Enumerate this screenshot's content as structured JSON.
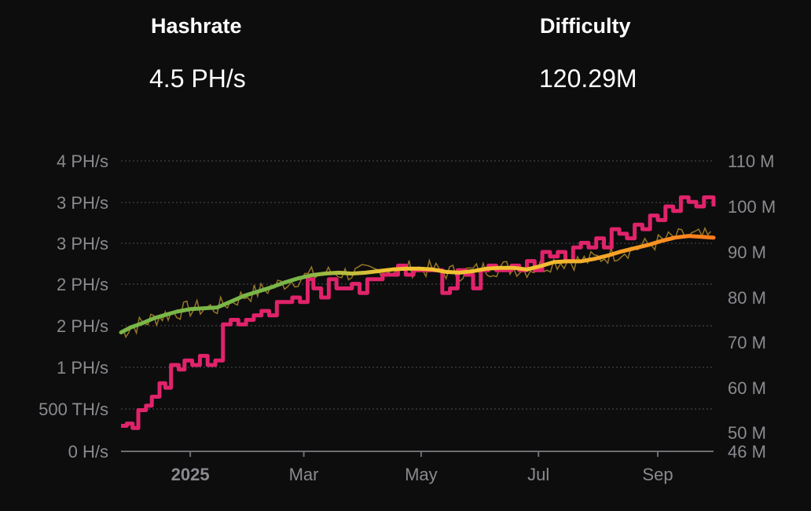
{
  "stats": {
    "hashrate": {
      "label": "Hashrate",
      "value": "4.5 PH/s"
    },
    "difficulty": {
      "label": "Difficulty",
      "value": "120.29M"
    }
  },
  "chart_data": {
    "type": "line",
    "left_axis": {
      "labels": [
        "0 H/s",
        "500 TH/s",
        "1 PH/s",
        "2 PH/s",
        "2 PH/s",
        "3 PH/s",
        "3 PH/s",
        "4 PH/s"
      ],
      "values": [
        0,
        0.5,
        1.0,
        1.5,
        2.0,
        2.5,
        3.0,
        3.5
      ],
      "ylim": [
        0,
        3.5
      ],
      "unit": "PH/s"
    },
    "right_axis": {
      "labels": [
        "46 M",
        "50 M",
        "60 M",
        "70 M",
        "80 M",
        "90 M",
        "100 M",
        "110 M"
      ],
      "values": [
        46,
        50,
        60,
        70,
        80,
        90,
        100,
        110
      ],
      "ylim": [
        46,
        110
      ],
      "unit": "M"
    },
    "x_axis": {
      "labels": [
        {
          "text": "2025",
          "date": "2025-01-01",
          "bold": true
        },
        {
          "text": "Mar",
          "date": "2025-03-01",
          "bold": false
        },
        {
          "text": "May",
          "date": "2025-05-01",
          "bold": false
        },
        {
          "text": "Jul",
          "date": "2025-07-01",
          "bold": false
        },
        {
          "text": "Sep",
          "date": "2025-09-01",
          "bold": false
        }
      ],
      "xlim": [
        "2024-11-26",
        "2025-09-30"
      ]
    },
    "grid": true,
    "colors": {
      "difficulty": "#e0236b",
      "hashrate_avg_start": "#7ab648",
      "hashrate_avg_mid": "#f1c232",
      "hashrate_avg_end": "#ff7a1a",
      "hashrate_raw": "#b08a2a",
      "grid": "#3a3a3d",
      "axis": "#6e6e73"
    },
    "series": [
      {
        "axis": "right",
        "points": [
          [
            "2024-11-26",
            51.5
          ],
          [
            "2024-11-29",
            52
          ],
          [
            "2024-12-02",
            51
          ],
          [
            "2024-12-05",
            55
          ],
          [
            "2024-12-09",
            56
          ],
          [
            "2024-12-12",
            58
          ],
          [
            "2024-12-16",
            61
          ],
          [
            "2024-12-19",
            60
          ],
          [
            "2024-12-22",
            65
          ],
          [
            "2024-12-26",
            64
          ],
          [
            "2024-12-29",
            66
          ],
          [
            "2025-01-02",
            65
          ],
          [
            "2025-01-06",
            67
          ],
          [
            "2025-01-10",
            65
          ],
          [
            "2025-01-14",
            66
          ],
          [
            "2025-01-18",
            74
          ],
          [
            "2025-01-22",
            75
          ],
          [
            "2025-01-26",
            74
          ],
          [
            "2025-01-30",
            75
          ],
          [
            "2025-02-03",
            76
          ],
          [
            "2025-02-07",
            77
          ],
          [
            "2025-02-11",
            76
          ],
          [
            "2025-02-15",
            79
          ],
          [
            "2025-02-19",
            79
          ],
          [
            "2025-02-23",
            80
          ],
          [
            "2025-02-27",
            79
          ],
          [
            "2025-03-03",
            84
          ],
          [
            "2025-03-06",
            82
          ],
          [
            "2025-03-10",
            80
          ],
          [
            "2025-03-14",
            84
          ],
          [
            "2025-03-18",
            82
          ],
          [
            "2025-03-22",
            82
          ],
          [
            "2025-03-26",
            83
          ],
          [
            "2025-03-30",
            81
          ],
          [
            "2025-04-03",
            84
          ],
          [
            "2025-04-07",
            84
          ],
          [
            "2025-04-11",
            85
          ],
          [
            "2025-04-15",
            85
          ],
          [
            "2025-04-19",
            87
          ],
          [
            "2025-04-23",
            85
          ],
          [
            "2025-04-27",
            86
          ],
          [
            "2025-04-30",
            86
          ],
          [
            "2025-05-04",
            86
          ],
          [
            "2025-05-08",
            86
          ],
          [
            "2025-05-12",
            81
          ],
          [
            "2025-05-16",
            82
          ],
          [
            "2025-05-20",
            86
          ],
          [
            "2025-05-24",
            85
          ],
          [
            "2025-05-28",
            82
          ],
          [
            "2025-06-01",
            86
          ],
          [
            "2025-06-05",
            87
          ],
          [
            "2025-06-09",
            86
          ],
          [
            "2025-06-13",
            86
          ],
          [
            "2025-06-17",
            87
          ],
          [
            "2025-06-21",
            86
          ],
          [
            "2025-06-25",
            88
          ],
          [
            "2025-06-29",
            86
          ],
          [
            "2025-07-03",
            90
          ],
          [
            "2025-07-07",
            89
          ],
          [
            "2025-07-11",
            90
          ],
          [
            "2025-07-15",
            88
          ],
          [
            "2025-07-19",
            91
          ],
          [
            "2025-07-23",
            92
          ],
          [
            "2025-07-27",
            91
          ],
          [
            "2025-07-31",
            93
          ],
          [
            "2025-08-04",
            91
          ],
          [
            "2025-08-08",
            95
          ],
          [
            "2025-08-12",
            94
          ],
          [
            "2025-08-16",
            93
          ],
          [
            "2025-08-20",
            96
          ],
          [
            "2025-08-24",
            95
          ],
          [
            "2025-08-28",
            98
          ],
          [
            "2025-09-01",
            97
          ],
          [
            "2025-09-05",
            100
          ],
          [
            "2025-09-09",
            99
          ],
          [
            "2025-09-13",
            102
          ],
          [
            "2025-09-17",
            101
          ],
          [
            "2025-09-21",
            100
          ],
          [
            "2025-09-25",
            102
          ],
          [
            "2025-09-30",
            100
          ]
        ]
      },
      {
        "axis": "left",
        "points": [
          [
            "2024-11-26",
            1.42
          ],
          [
            "2024-12-01",
            1.48
          ],
          [
            "2024-12-07",
            1.53
          ],
          [
            "2024-12-13",
            1.59
          ],
          [
            "2024-12-19",
            1.63
          ],
          [
            "2024-12-25",
            1.67
          ],
          [
            "2025-01-01",
            1.7
          ],
          [
            "2025-01-08",
            1.71
          ],
          [
            "2025-01-15",
            1.72
          ],
          [
            "2025-01-22",
            1.79
          ],
          [
            "2025-01-29",
            1.86
          ],
          [
            "2025-02-05",
            1.91
          ],
          [
            "2025-02-12",
            1.96
          ],
          [
            "2025-02-19",
            2.02
          ],
          [
            "2025-02-26",
            2.07
          ],
          [
            "2025-03-05",
            2.11
          ],
          [
            "2025-03-12",
            2.13
          ],
          [
            "2025-03-19",
            2.14
          ],
          [
            "2025-03-26",
            2.13
          ],
          [
            "2025-04-02",
            2.14
          ],
          [
            "2025-04-09",
            2.16
          ],
          [
            "2025-04-16",
            2.18
          ],
          [
            "2025-04-23",
            2.19
          ],
          [
            "2025-04-30",
            2.19
          ],
          [
            "2025-05-07",
            2.18
          ],
          [
            "2025-05-14",
            2.15
          ],
          [
            "2025-05-21",
            2.14
          ],
          [
            "2025-05-28",
            2.16
          ],
          [
            "2025-06-04",
            2.19
          ],
          [
            "2025-06-11",
            2.2
          ],
          [
            "2025-06-18",
            2.2
          ],
          [
            "2025-06-25",
            2.18
          ],
          [
            "2025-07-02",
            2.22
          ],
          [
            "2025-07-09",
            2.27
          ],
          [
            "2025-07-16",
            2.28
          ],
          [
            "2025-07-23",
            2.28
          ],
          [
            "2025-07-30",
            2.31
          ],
          [
            "2025-08-06",
            2.35
          ],
          [
            "2025-08-13",
            2.4
          ],
          [
            "2025-08-20",
            2.44
          ],
          [
            "2025-08-27",
            2.48
          ],
          [
            "2025-09-03",
            2.53
          ],
          [
            "2025-09-10",
            2.57
          ],
          [
            "2025-09-17",
            2.59
          ],
          [
            "2025-09-24",
            2.58
          ],
          [
            "2025-09-30",
            2.57
          ]
        ]
      }
    ]
  }
}
